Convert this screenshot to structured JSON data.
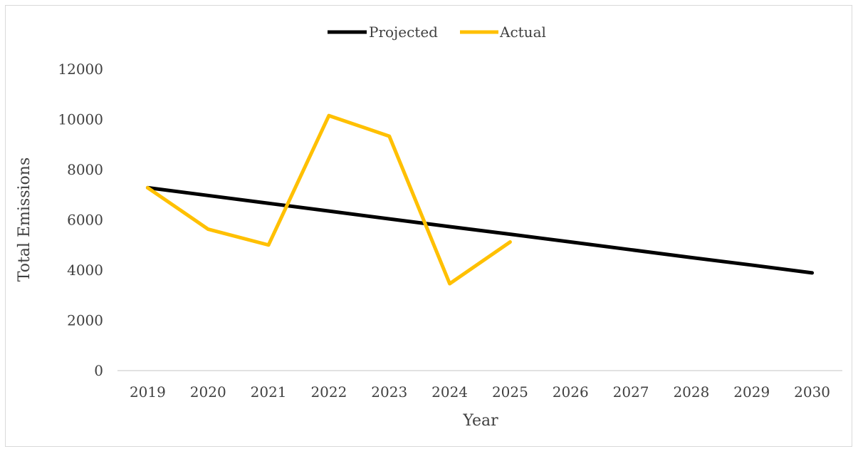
{
  "chart_data": {
    "type": "line",
    "title": "",
    "xlabel": "Year",
    "ylabel": "Total Emissions",
    "categories": [
      "2019",
      "2020",
      "2021",
      "2022",
      "2023",
      "2024",
      "2025",
      "2026",
      "2027",
      "2028",
      "2029",
      "2030"
    ],
    "ylim": [
      0,
      12000
    ],
    "yticks": [
      0,
      2000,
      4000,
      6000,
      8000,
      10000,
      12000
    ],
    "grid": false,
    "legend_position": "top",
    "series": [
      {
        "name": "Projected",
        "color": "#000000",
        "values": [
          7280,
          6970,
          6660,
          6350,
          6040,
          5730,
          5430,
          5120,
          4810,
          4500,
          4200,
          3890
        ]
      },
      {
        "name": "Actual",
        "color": "#FFC000",
        "values": [
          7280,
          5630,
          5000,
          10150,
          9330,
          3460,
          5120,
          null,
          null,
          null,
          null,
          null
        ]
      }
    ]
  }
}
